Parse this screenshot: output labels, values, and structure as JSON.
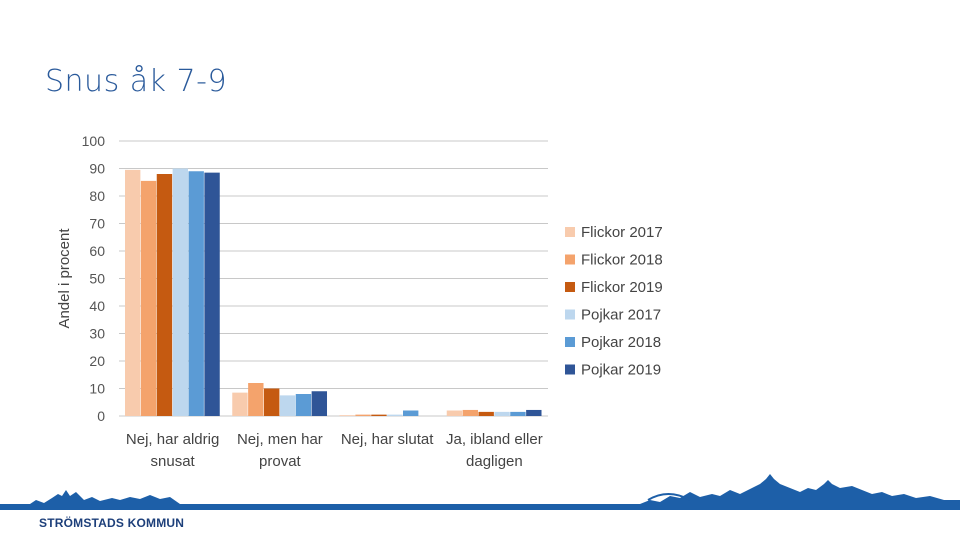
{
  "slide": {
    "title": "Snus åk 7-9",
    "brand": "STRÖMSTADS KOMMUN"
  },
  "colors": {
    "title": "#2a5a9b",
    "footer_band": "#1d5fa8"
  },
  "chart_data": {
    "type": "bar",
    "ylabel": "Andel i procent",
    "xlabel": "",
    "ylim": [
      0,
      100
    ],
    "yticks": [
      0,
      10,
      20,
      30,
      40,
      50,
      60,
      70,
      80,
      90,
      100
    ],
    "grid": true,
    "legend_position": "right",
    "categories": [
      [
        "Nej, har aldrig",
        "snusat"
      ],
      [
        "Nej, men har",
        "provat"
      ],
      [
        "Nej, har slutat"
      ],
      [
        "Ja, ibland eller",
        "dagligen"
      ]
    ],
    "series": [
      {
        "name": "Flickor 2017",
        "color": "#f8cbad",
        "values": [
          89.5,
          8.5,
          0.3,
          2.0
        ]
      },
      {
        "name": "Flickor 2018",
        "color": "#f4a36c",
        "values": [
          85.5,
          12.0,
          0.5,
          2.2
        ]
      },
      {
        "name": "Flickor 2019",
        "color": "#c55a11",
        "values": [
          88.0,
          10.0,
          0.5,
          1.5
        ]
      },
      {
        "name": "Pojkar 2017",
        "color": "#bdd7ee",
        "values": [
          90.0,
          7.5,
          0.5,
          1.5
        ]
      },
      {
        "name": "Pojkar 2018",
        "color": "#5b9bd5",
        "values": [
          89.0,
          8.0,
          2.0,
          1.5
        ]
      },
      {
        "name": "Pojkar 2019",
        "color": "#2f5597",
        "values": [
          88.5,
          9.0,
          0.0,
          2.2
        ]
      }
    ]
  }
}
